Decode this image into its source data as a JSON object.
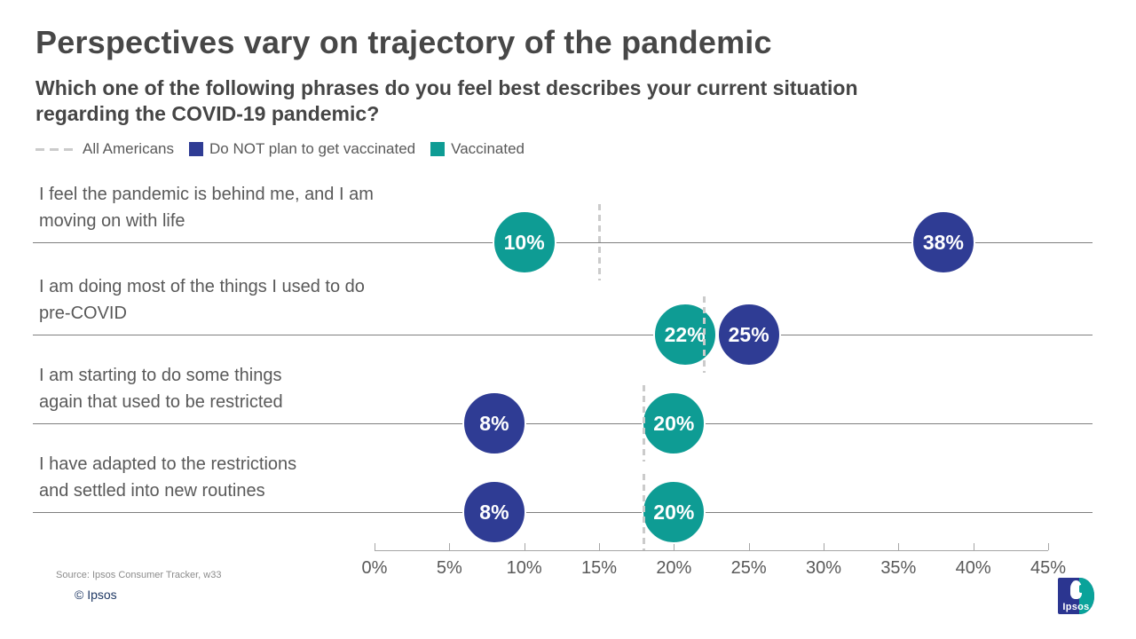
{
  "title": "Perspectives vary on trajectory of the pandemic",
  "subtitle": "Which one of the following phrases do you feel best describes your current situation\nregarding the COVID-19 pandemic?",
  "source": "Source: Ipsos Consumer Tracker, w33",
  "copyright": "© Ipsos",
  "logo_text": "Ipsos",
  "colors": {
    "title_text": "#474747",
    "body_text": "#595959",
    "blue": "#2f3c94",
    "teal": "#0e9c94",
    "dash": "#cbcbcb"
  },
  "chart_data": {
    "type": "scatter",
    "subtype": "bubble-dot-plot",
    "unit": "percent",
    "grid": "horizontal-category-lines",
    "legend_position": "top-left",
    "x_axis": {
      "min": 0,
      "max": 45,
      "tick_step": 5,
      "tick_labels": [
        "0%",
        "5%",
        "10%",
        "15%",
        "20%",
        "25%",
        "30%",
        "35%",
        "40%",
        "45%"
      ]
    },
    "categories": [
      "I feel the pandemic is behind me, and I am\nmoving on with life",
      "I am doing most of the things I used to do\npre-COVID",
      "I am starting to do some things\nagain that used to be restricted",
      "I have adapted to the restrictions\nand settled into new routines"
    ],
    "series": [
      {
        "name": "All Americans",
        "style": "dashed-reference-line",
        "color": "#cbcbcb",
        "values": [
          15,
          22,
          18,
          18
        ]
      },
      {
        "name": "Do NOT plan to get vaccinated",
        "style": "bubble",
        "color": "#2f3c94",
        "values": [
          38,
          25,
          8,
          8
        ]
      },
      {
        "name": "Vaccinated",
        "style": "bubble",
        "color": "#0e9c94",
        "values": [
          10,
          22,
          20,
          20
        ]
      }
    ],
    "data_labels": "value-percent-inside-bubble"
  }
}
